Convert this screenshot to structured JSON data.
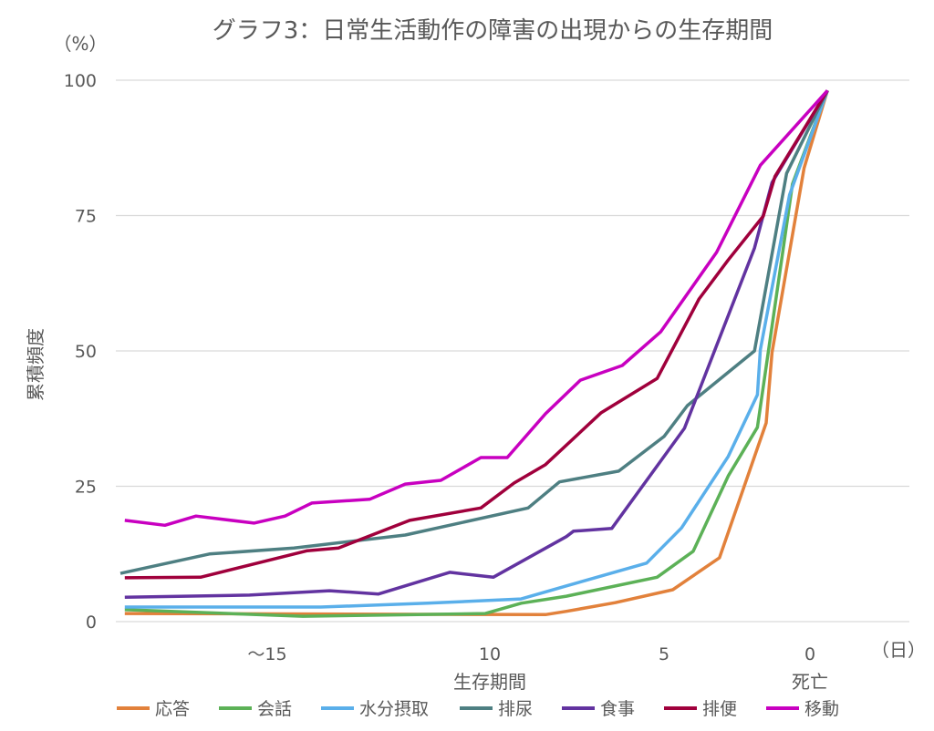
{
  "chart_data": {
    "type": "line",
    "title": "グラフ3：日常生活動作の障害の出現からの生存期間",
    "ylabel": "累積頻度",
    "yunit": "（%）",
    "xlabel": "生存期間",
    "xunit": "（日）",
    "x_end_label": "死亡",
    "ylim": [
      0,
      100
    ],
    "yticks": [
      "0",
      "25",
      "50",
      "75",
      "100"
    ],
    "xticks": [
      {
        "day": 15,
        "label": "〜15"
      },
      {
        "day": 10,
        "label": "10"
      },
      {
        "day": 5,
        "label": "5"
      },
      {
        "day": 0,
        "label": "0"
      }
    ],
    "x_reversed": true,
    "grid": true,
    "legend": "bottom",
    "series": [
      {
        "name": "応答",
        "color": "#e2813b",
        "points": [
          [
            18.2,
            1.5
          ],
          [
            8.4,
            1.3
          ],
          [
            7.8,
            1.9
          ],
          [
            6.4,
            3.5
          ],
          [
            4.7,
            5.9
          ],
          [
            3.1,
            11.8
          ],
          [
            1.5,
            36.7
          ],
          [
            1.3,
            49.7
          ],
          [
            0.2,
            83.8
          ],
          [
            -0.6,
            98.1
          ]
        ]
      },
      {
        "name": "会話",
        "color": "#5cb157",
        "points": [
          [
            18.2,
            2.2
          ],
          [
            14.2,
            1.0
          ],
          [
            10.1,
            1.5
          ],
          [
            9.1,
            3.4
          ],
          [
            7.8,
            4.7
          ],
          [
            5.2,
            8.2
          ],
          [
            4.0,
            13.0
          ],
          [
            2.8,
            26.9
          ],
          [
            1.8,
            35.9
          ],
          [
            0.9,
            69.5
          ],
          [
            0.6,
            80.8
          ],
          [
            -0.6,
            98.1
          ]
        ]
      },
      {
        "name": "水分摂取",
        "color": "#5aafea",
        "points": [
          [
            18.2,
            2.7
          ],
          [
            13.8,
            2.7
          ],
          [
            11.4,
            3.4
          ],
          [
            9.1,
            4.2
          ],
          [
            7.8,
            6.6
          ],
          [
            5.5,
            10.8
          ],
          [
            4.4,
            17.3
          ],
          [
            2.8,
            30.5
          ],
          [
            1.8,
            41.9
          ],
          [
            1.7,
            50.2
          ],
          [
            0.7,
            78.8
          ],
          [
            -0.6,
            98.1
          ]
        ]
      },
      {
        "name": "排尿",
        "color": "#4e7f82",
        "points": [
          [
            18.3,
            8.9
          ],
          [
            16.3,
            12.5
          ],
          [
            14.4,
            13.6
          ],
          [
            11.9,
            16.0
          ],
          [
            8.9,
            21.0
          ],
          [
            8.0,
            25.8
          ],
          [
            6.3,
            27.8
          ],
          [
            5.0,
            34.2
          ],
          [
            4.2,
            39.9
          ],
          [
            1.9,
            50.0
          ],
          [
            0.8,
            82.8
          ],
          [
            -0.6,
            98.1
          ]
        ]
      },
      {
        "name": "食事",
        "color": "#6233a0",
        "points": [
          [
            18.2,
            4.5
          ],
          [
            15.4,
            4.9
          ],
          [
            13.6,
            5.7
          ],
          [
            12.5,
            5.1
          ],
          [
            10.9,
            9.1
          ],
          [
            9.9,
            8.2
          ],
          [
            7.8,
            15.7
          ],
          [
            7.6,
            16.7
          ],
          [
            6.5,
            17.2
          ],
          [
            4.3,
            35.7
          ],
          [
            1.9,
            69.0
          ],
          [
            1.3,
            81.1
          ],
          [
            -0.6,
            98.1
          ]
        ]
      },
      {
        "name": "排便",
        "color": "#a0003c",
        "points": [
          [
            18.2,
            8.1
          ],
          [
            16.5,
            8.2
          ],
          [
            14.1,
            13.1
          ],
          [
            13.4,
            13.6
          ],
          [
            11.8,
            18.7
          ],
          [
            10.2,
            21.0
          ],
          [
            9.3,
            25.6
          ],
          [
            8.4,
            29.0
          ],
          [
            6.8,
            38.6
          ],
          [
            5.2,
            44.9
          ],
          [
            3.8,
            59.6
          ],
          [
            2.8,
            66.8
          ],
          [
            1.6,
            74.9
          ],
          [
            1.2,
            82.2
          ],
          [
            -0.6,
            98.1
          ]
        ]
      },
      {
        "name": "移動",
        "color": "#c800c0",
        "points": [
          [
            18.2,
            18.7
          ],
          [
            17.3,
            17.8
          ],
          [
            16.6,
            19.5
          ],
          [
            15.3,
            18.2
          ],
          [
            14.6,
            19.5
          ],
          [
            14.0,
            21.9
          ],
          [
            12.7,
            22.6
          ],
          [
            11.9,
            25.4
          ],
          [
            11.1,
            26.1
          ],
          [
            10.2,
            30.3
          ],
          [
            9.5,
            30.3
          ],
          [
            8.4,
            38.4
          ],
          [
            7.4,
            44.6
          ],
          [
            6.2,
            47.3
          ],
          [
            5.1,
            53.5
          ],
          [
            3.2,
            68.2
          ],
          [
            1.7,
            84.3
          ],
          [
            -0.6,
            98.1
          ]
        ]
      }
    ]
  }
}
